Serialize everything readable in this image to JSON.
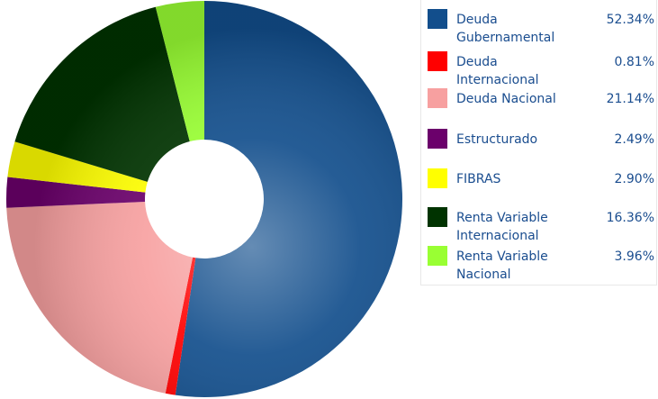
{
  "chart_data": {
    "type": "donut",
    "categories": [
      "Deuda Gubernamental",
      "Deuda Internacional",
      "Deuda Nacional",
      "Estructurado",
      "FIBRAS",
      "Renta Variable Internacional",
      "Renta Variable Nacional"
    ],
    "values": [
      52.34,
      0.81,
      21.14,
      2.49,
      2.9,
      16.36,
      3.96
    ],
    "value_labels": [
      "52.34%",
      "0.81%",
      "21.14%",
      "2.49%",
      "2.90%",
      "16.36%",
      "3.96%"
    ],
    "colors": [
      "#124e8c",
      "#ff0000",
      "#f7a0a0",
      "#6b006b",
      "#ffff00",
      "#003300",
      "#99ff33"
    ],
    "legend": "right"
  }
}
